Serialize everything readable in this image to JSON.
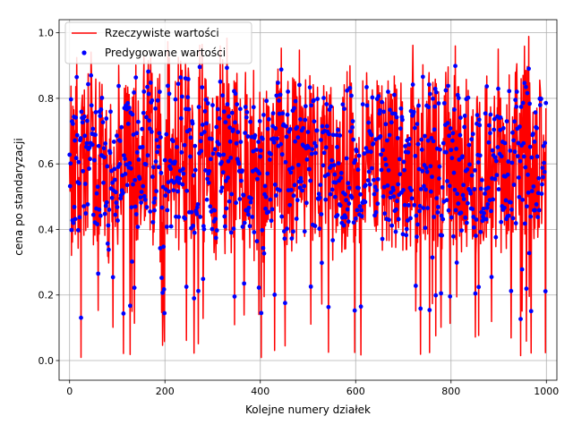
{
  "chart_data": {
    "type": "line",
    "xlabel": "Kolejne numery działek",
    "ylabel": "cena po standaryzacji",
    "xlim": [
      -22,
      1022
    ],
    "ylim": [
      -0.06,
      1.04
    ],
    "x_ticks": [
      0,
      200,
      400,
      600,
      800,
      1000
    ],
    "y_ticks": [
      0.0,
      0.2,
      0.4,
      0.6,
      0.8,
      1.0
    ],
    "x_tick_labels": [
      "0",
      "200",
      "400",
      "600",
      "800",
      "1000"
    ],
    "y_tick_labels": [
      "0.0",
      "0.2",
      "0.4",
      "0.6",
      "0.8",
      "1.0"
    ],
    "grid": true,
    "legend_position": "top-left",
    "n_points": 1000,
    "series": [
      {
        "name": "Rzeczywiste wartości",
        "kind": "line",
        "color": "#ff0000",
        "sampled_x": [
          0,
          40,
          80,
          120,
          160,
          200,
          240,
          280,
          320,
          360,
          400,
          440,
          480,
          520,
          560,
          600,
          640,
          680,
          720,
          760,
          800,
          840,
          880,
          920,
          960,
          999
        ],
        "sampled_values": [
          0.58,
          0.62,
          0.55,
          0.6,
          0.66,
          0.52,
          0.63,
          0.6,
          0.57,
          0.64,
          0.55,
          0.62,
          0.58,
          0.61,
          0.56,
          0.63,
          0.59,
          0.6,
          0.57,
          0.62,
          0.6,
          0.58,
          0.61,
          0.6,
          0.62,
          0.59
        ],
        "min": 0.0,
        "max": 1.0
      },
      {
        "name": "Predygowane wartości",
        "kind": "scatter",
        "color": "#0000ff",
        "sampled_x": [
          0,
          40,
          80,
          120,
          160,
          200,
          240,
          280,
          320,
          360,
          400,
          440,
          480,
          520,
          560,
          600,
          640,
          680,
          720,
          760,
          800,
          840,
          880,
          920,
          960,
          999
        ],
        "sampled_values": [
          0.6,
          0.61,
          0.57,
          0.62,
          0.64,
          0.55,
          0.6,
          0.59,
          0.58,
          0.62,
          0.57,
          0.6,
          0.59,
          0.6,
          0.58,
          0.61,
          0.6,
          0.59,
          0.58,
          0.61,
          0.6,
          0.59,
          0.6,
          0.61,
          0.6,
          0.68
        ],
        "min": 0.05,
        "max": 0.95
      }
    ]
  }
}
